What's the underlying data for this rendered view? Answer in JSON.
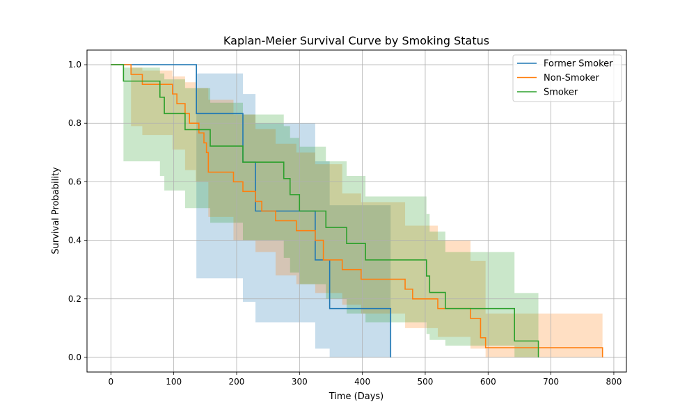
{
  "chart_data": {
    "type": "line",
    "title": "Kaplan-Meier Survival Curve by Smoking Status",
    "xlabel": "Time (Days)",
    "ylabel": "Survival Probability",
    "xlim": [
      -38,
      820
    ],
    "ylim": [
      -0.05,
      1.05
    ],
    "xticks": [
      0,
      100,
      200,
      300,
      400,
      500,
      600,
      700,
      800
    ],
    "yticks": [
      0.0,
      0.2,
      0.4,
      0.6,
      0.8,
      1.0
    ],
    "xtick_labels": [
      "0",
      "100",
      "200",
      "300",
      "400",
      "500",
      "600",
      "700",
      "800"
    ],
    "ytick_labels": [
      "0.0",
      "0.2",
      "0.4",
      "0.6",
      "0.8",
      "1.0"
    ],
    "grid": true,
    "legend_position": "top-right",
    "series": [
      {
        "name": "Former Smoker",
        "color": "#1f77b4",
        "steps": [
          [
            0,
            1.0
          ],
          [
            136,
            0.833
          ],
          [
            210,
            0.667
          ],
          [
            230,
            0.5
          ],
          [
            325,
            0.333
          ],
          [
            348,
            0.167
          ],
          [
            445,
            0.0
          ]
        ],
        "band": [
          [
            0,
            1.0,
            1.0
          ],
          [
            136,
            0.97,
            0.27
          ],
          [
            210,
            0.9,
            0.19
          ],
          [
            230,
            0.8,
            0.12
          ],
          [
            325,
            0.67,
            0.03
          ],
          [
            348,
            0.52,
            0.0
          ],
          [
            445,
            0.52,
            0.0
          ]
        ]
      },
      {
        "name": "Non-Smoker",
        "color": "#ff7f0e",
        "steps": [
          [
            0,
            1.0
          ],
          [
            32,
            0.967
          ],
          [
            50,
            0.933
          ],
          [
            98,
            0.9
          ],
          [
            105,
            0.867
          ],
          [
            118,
            0.833
          ],
          [
            125,
            0.8
          ],
          [
            140,
            0.767
          ],
          [
            148,
            0.733
          ],
          [
            152,
            0.7
          ],
          [
            155,
            0.633
          ],
          [
            195,
            0.6
          ],
          [
            210,
            0.567
          ],
          [
            230,
            0.533
          ],
          [
            240,
            0.5
          ],
          [
            262,
            0.467
          ],
          [
            295,
            0.433
          ],
          [
            325,
            0.4
          ],
          [
            338,
            0.333
          ],
          [
            368,
            0.3
          ],
          [
            398,
            0.267
          ],
          [
            468,
            0.233
          ],
          [
            480,
            0.2
          ],
          [
            520,
            0.167
          ],
          [
            572,
            0.133
          ],
          [
            588,
            0.067
          ],
          [
            596,
            0.033
          ],
          [
            782,
            0.0
          ]
        ],
        "band": [
          [
            0,
            1.0,
            1.0
          ],
          [
            32,
            0.99,
            0.79
          ],
          [
            50,
            0.98,
            0.76
          ],
          [
            98,
            0.96,
            0.71
          ],
          [
            118,
            0.94,
            0.64
          ],
          [
            135,
            0.92,
            0.6
          ],
          [
            155,
            0.88,
            0.48
          ],
          [
            195,
            0.83,
            0.4
          ],
          [
            230,
            0.78,
            0.36
          ],
          [
            262,
            0.73,
            0.28
          ],
          [
            295,
            0.7,
            0.25
          ],
          [
            325,
            0.66,
            0.22
          ],
          [
            368,
            0.56,
            0.18
          ],
          [
            398,
            0.53,
            0.15
          ],
          [
            468,
            0.45,
            0.1
          ],
          [
            520,
            0.4,
            0.07
          ],
          [
            572,
            0.33,
            0.03
          ],
          [
            596,
            0.15,
            0.0
          ],
          [
            782,
            0.15,
            0.0
          ]
        ]
      },
      {
        "name": "Smoker",
        "color": "#2ca02c",
        "steps": [
          [
            0,
            1.0
          ],
          [
            20,
            0.944
          ],
          [
            78,
            0.889
          ],
          [
            85,
            0.833
          ],
          [
            118,
            0.778
          ],
          [
            158,
            0.722
          ],
          [
            210,
            0.667
          ],
          [
            275,
            0.611
          ],
          [
            285,
            0.556
          ],
          [
            300,
            0.5
          ],
          [
            342,
            0.444
          ],
          [
            375,
            0.389
          ],
          [
            405,
            0.333
          ],
          [
            502,
            0.278
          ],
          [
            507,
            0.222
          ],
          [
            532,
            0.167
          ],
          [
            642,
            0.056
          ],
          [
            680,
            0.0
          ]
        ],
        "band": [
          [
            0,
            1.0,
            1.0
          ],
          [
            20,
            0.99,
            0.67
          ],
          [
            78,
            0.97,
            0.62
          ],
          [
            85,
            0.95,
            0.57
          ],
          [
            118,
            0.92,
            0.51
          ],
          [
            158,
            0.87,
            0.46
          ],
          [
            210,
            0.83,
            0.4
          ],
          [
            275,
            0.79,
            0.34
          ],
          [
            285,
            0.75,
            0.29
          ],
          [
            300,
            0.72,
            0.25
          ],
          [
            342,
            0.67,
            0.2
          ],
          [
            375,
            0.62,
            0.15
          ],
          [
            405,
            0.55,
            0.12
          ],
          [
            502,
            0.49,
            0.08
          ],
          [
            507,
            0.43,
            0.06
          ],
          [
            532,
            0.36,
            0.04
          ],
          [
            642,
            0.22,
            0.0
          ],
          [
            680,
            0.22,
            0.0
          ]
        ]
      }
    ]
  }
}
